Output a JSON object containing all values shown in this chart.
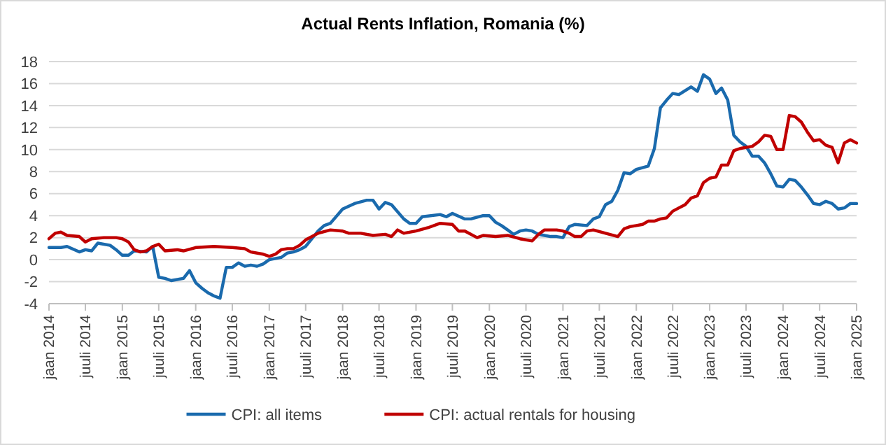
{
  "chart_data": {
    "type": "line",
    "title": "Actual Rents Inflation, Romania (%)",
    "xlim": [
      "2014-01",
      "2025-01"
    ],
    "xticks": [
      {
        "value": "2014-01",
        "label": "jaan 2014"
      },
      {
        "value": "2014-07",
        "label": "juuli 2014"
      },
      {
        "value": "2015-01",
        "label": "jaan 2015"
      },
      {
        "value": "2015-07",
        "label": "juuli 2015"
      },
      {
        "value": "2016-01",
        "label": "jaan 2016"
      },
      {
        "value": "2016-07",
        "label": "juuli 2016"
      },
      {
        "value": "2017-01",
        "label": "jaan 2017"
      },
      {
        "value": "2017-07",
        "label": "juuli 2017"
      },
      {
        "value": "2018-01",
        "label": "jaan 2018"
      },
      {
        "value": "2018-07",
        "label": "juuli 2018"
      },
      {
        "value": "2019-01",
        "label": "jaan 2019"
      },
      {
        "value": "2019-07",
        "label": "juuli 2019"
      },
      {
        "value": "2020-01",
        "label": "jaan 2020"
      },
      {
        "value": "2020-07",
        "label": "juuli 2020"
      },
      {
        "value": "2021-01",
        "label": "jaan 2021"
      },
      {
        "value": "2021-07",
        "label": "juuli 2021"
      },
      {
        "value": "2022-01",
        "label": "jaan 2022"
      },
      {
        "value": "2022-07",
        "label": "juuli 2022"
      },
      {
        "value": "2023-01",
        "label": "jaan 2023"
      },
      {
        "value": "2023-07",
        "label": "juuli 2023"
      },
      {
        "value": "2024-01",
        "label": "jaan 2024"
      },
      {
        "value": "2024-07",
        "label": "juuli 2024"
      },
      {
        "value": "2025-01",
        "label": "jaan 2025"
      }
    ],
    "ylim": [
      -4,
      18
    ],
    "yticks": [
      -4,
      -2,
      0,
      2,
      4,
      6,
      8,
      10,
      12,
      14,
      16,
      18
    ],
    "grid": "y",
    "legend": "bottom",
    "line_style": "solid",
    "series": [
      {
        "name": "CPI: all items",
        "color": "#1a6aad",
        "x": [
          "2014-01",
          "2014-03",
          "2014-04",
          "2014-06",
          "2014-07",
          "2014-08",
          "2014-09",
          "2014-11",
          "2014-12",
          "2015-01",
          "2015-02",
          "2015-03",
          "2015-05",
          "2015-06",
          "2015-07",
          "2015-08",
          "2015-09",
          "2015-11",
          "2015-12",
          "2016-01",
          "2016-02",
          "2016-03",
          "2016-04",
          "2016-05",
          "2016-06",
          "2016-07",
          "2016-08",
          "2016-09",
          "2016-10",
          "2016-11",
          "2016-12",
          "2017-01",
          "2017-03",
          "2017-04",
          "2017-05",
          "2017-06",
          "2017-07",
          "2017-08",
          "2017-09",
          "2017-10",
          "2017-11",
          "2018-01",
          "2018-03",
          "2018-05",
          "2018-06",
          "2018-07",
          "2018-08",
          "2018-09",
          "2018-11",
          "2018-12",
          "2019-01",
          "2019-02",
          "2019-05",
          "2019-06",
          "2019-07",
          "2019-09",
          "2019-10",
          "2019-12",
          "2020-01",
          "2020-02",
          "2020-03",
          "2020-04",
          "2020-05",
          "2020-06",
          "2020-07",
          "2020-08",
          "2020-09",
          "2020-10",
          "2020-11",
          "2020-12",
          "2021-01",
          "2021-02",
          "2021-03",
          "2021-05",
          "2021-06",
          "2021-07",
          "2021-08",
          "2021-09",
          "2021-10",
          "2021-11",
          "2021-12",
          "2022-01",
          "2022-03",
          "2022-04",
          "2022-05",
          "2022-06",
          "2022-07",
          "2022-08",
          "2022-10",
          "2022-11",
          "2022-12",
          "2023-01",
          "2023-02",
          "2023-03",
          "2023-04",
          "2023-05",
          "2023-06",
          "2023-07",
          "2023-08",
          "2023-09",
          "2023-10",
          "2023-11",
          "2023-12",
          "2024-01",
          "2024-02",
          "2024-03",
          "2024-04",
          "2024-05",
          "2024-06",
          "2024-07",
          "2024-08",
          "2024-09",
          "2024-10",
          "2024-11",
          "2024-12",
          "2025-01"
        ],
        "values": [
          1.1,
          1.1,
          1.2,
          0.7,
          0.9,
          0.8,
          1.5,
          1.3,
          0.9,
          0.4,
          0.4,
          0.8,
          0.7,
          1.2,
          -1.6,
          -1.7,
          -1.9,
          -1.7,
          -1.0,
          -2.1,
          -2.6,
          -3.0,
          -3.3,
          -3.5,
          -0.7,
          -0.7,
          -0.3,
          -0.6,
          -0.5,
          -0.6,
          -0.4,
          0.0,
          0.2,
          0.6,
          0.7,
          0.9,
          1.2,
          1.9,
          2.6,
          3.1,
          3.3,
          4.6,
          5.1,
          5.4,
          5.4,
          4.6,
          5.2,
          5.0,
          3.7,
          3.3,
          3.3,
          3.9,
          4.1,
          3.9,
          4.2,
          3.7,
          3.7,
          4.0,
          4.0,
          3.4,
          3.1,
          2.7,
          2.3,
          2.6,
          2.7,
          2.6,
          2.3,
          2.2,
          2.1,
          2.1,
          2.0,
          3.0,
          3.2,
          3.1,
          3.7,
          3.9,
          5.0,
          5.3,
          6.3,
          7.9,
          7.8,
          8.2,
          8.5,
          10.1,
          13.8,
          14.5,
          15.1,
          15.0,
          15.7,
          15.3,
          16.8,
          16.4,
          15.1,
          15.6,
          14.5,
          11.3,
          10.7,
          10.3,
          9.4,
          9.4,
          8.8,
          7.8,
          6.7,
          6.6,
          7.3,
          7.2,
          6.6,
          5.9,
          5.1,
          5.0,
          5.3,
          5.1,
          4.6,
          4.7,
          5.1,
          5.1
        ]
      },
      {
        "name": "CPI: actual rentals for housing",
        "color": "#c00000",
        "x": [
          "2014-01",
          "2014-02",
          "2014-03",
          "2014-04",
          "2014-06",
          "2014-07",
          "2014-08",
          "2014-10",
          "2014-12",
          "2015-01",
          "2015-02",
          "2015-03",
          "2015-04",
          "2015-05",
          "2015-06",
          "2015-07",
          "2015-08",
          "2015-10",
          "2015-11",
          "2016-01",
          "2016-04",
          "2016-07",
          "2016-09",
          "2016-10",
          "2016-12",
          "2017-01",
          "2017-02",
          "2017-03",
          "2017-04",
          "2017-05",
          "2017-06",
          "2017-07",
          "2017-09",
          "2017-11",
          "2018-01",
          "2018-02",
          "2018-04",
          "2018-06",
          "2018-08",
          "2018-09",
          "2018-10",
          "2018-11",
          "2019-01",
          "2019-03",
          "2019-05",
          "2019-07",
          "2019-08",
          "2019-09",
          "2019-11",
          "2019-12",
          "2020-02",
          "2020-04",
          "2020-06",
          "2020-08",
          "2020-09",
          "2020-10",
          "2020-12",
          "2021-01",
          "2021-02",
          "2021-03",
          "2021-04",
          "2021-05",
          "2021-06",
          "2021-08",
          "2021-10",
          "2021-11",
          "2021-12",
          "2022-01",
          "2022-02",
          "2022-03",
          "2022-04",
          "2022-05",
          "2022-06",
          "2022-07",
          "2022-08",
          "2022-09",
          "2022-10",
          "2022-11",
          "2022-12",
          "2023-01",
          "2023-02",
          "2023-03",
          "2023-04",
          "2023-05",
          "2023-06",
          "2023-07",
          "2023-08",
          "2023-09",
          "2023-10",
          "2023-11",
          "2023-12",
          "2024-01",
          "2024-02",
          "2024-03",
          "2024-04",
          "2024-05",
          "2024-06",
          "2024-07",
          "2024-08",
          "2024-09",
          "2024-10",
          "2024-11",
          "2024-12",
          "2025-01"
        ],
        "values": [
          1.9,
          2.4,
          2.5,
          2.2,
          2.1,
          1.6,
          1.9,
          2.0,
          2.0,
          1.9,
          1.6,
          0.9,
          0.7,
          0.8,
          1.2,
          1.4,
          0.8,
          0.9,
          0.8,
          1.1,
          1.2,
          1.1,
          1.0,
          0.7,
          0.5,
          0.3,
          0.5,
          0.9,
          1.0,
          1.0,
          1.3,
          1.8,
          2.4,
          2.7,
          2.6,
          2.4,
          2.4,
          2.2,
          2.3,
          2.1,
          2.7,
          2.4,
          2.6,
          2.9,
          3.3,
          3.2,
          2.6,
          2.6,
          2.0,
          2.2,
          2.1,
          2.2,
          1.9,
          1.7,
          2.3,
          2.7,
          2.7,
          2.6,
          2.4,
          2.1,
          2.1,
          2.6,
          2.7,
          2.4,
          2.1,
          2.8,
          3.0,
          3.1,
          3.2,
          3.5,
          3.5,
          3.7,
          3.8,
          4.4,
          4.7,
          5.0,
          5.6,
          5.8,
          7.0,
          7.4,
          7.5,
          8.6,
          8.6,
          9.9,
          10.1,
          10.2,
          10.3,
          10.7,
          11.3,
          11.2,
          10.0,
          10.0,
          13.1,
          13.0,
          12.5,
          11.6,
          10.8,
          10.9,
          10.4,
          10.2,
          8.8,
          10.6,
          10.9,
          10.6
        ]
      }
    ]
  }
}
